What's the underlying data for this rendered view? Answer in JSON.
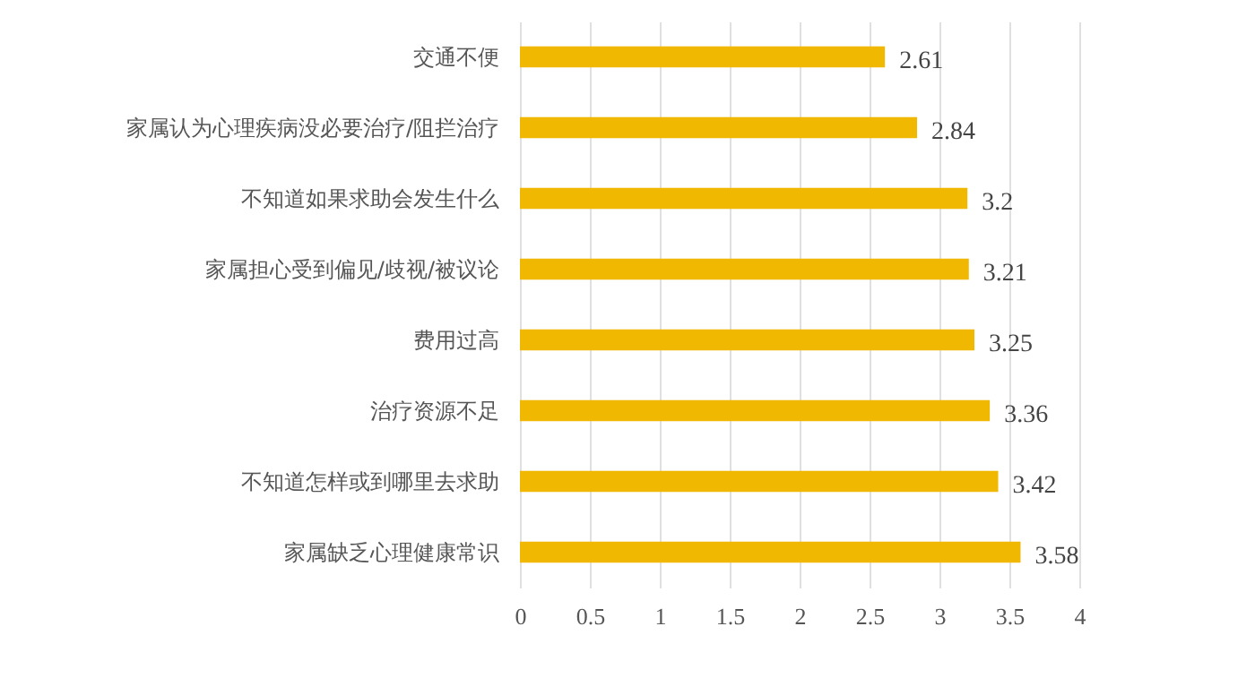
{
  "chart_data": {
    "type": "bar",
    "orientation": "horizontal",
    "categories": [
      "交通不便",
      "家属认为心理疾病没必要治疗/阻拦治疗",
      "不知道如果求助会发生什么",
      "家属担心受到偏见/歧视/被议论",
      "费用过高",
      "治疗资源不足",
      "不知道怎样或到哪里去求助",
      "家属缺乏心理健康常识"
    ],
    "values": [
      2.61,
      2.84,
      3.2,
      3.21,
      3.25,
      3.36,
      3.42,
      3.58
    ],
    "color": "#f0b800",
    "xlim": [
      0,
      4
    ],
    "xticks": [
      0,
      0.5,
      1,
      1.5,
      2,
      2.5,
      3,
      3.5,
      4
    ],
    "grid": "x",
    "data_labels": true
  }
}
